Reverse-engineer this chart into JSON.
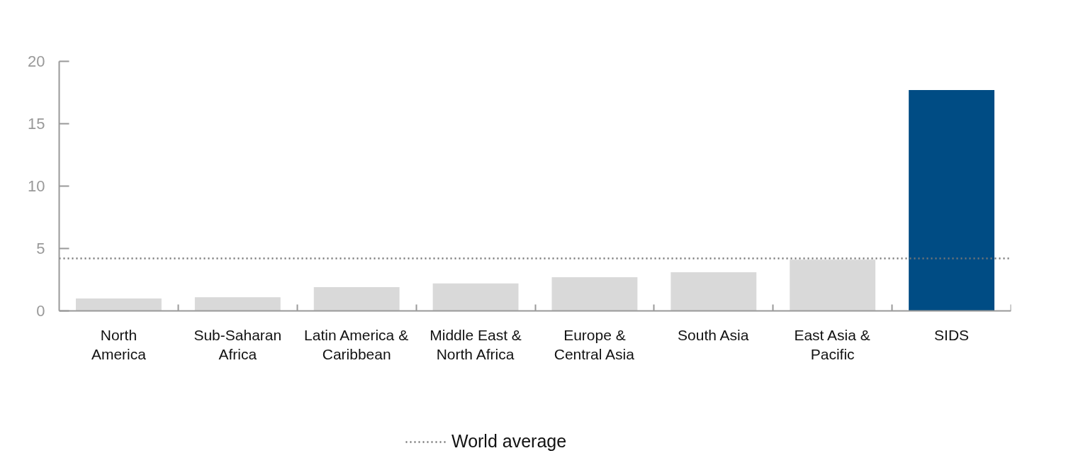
{
  "chart_data": {
    "type": "bar",
    "categories": [
      "North America",
      "Sub-Saharan Africa",
      "Latin America & Caribbean",
      "Middle East & North Africa",
      "Europe & Central Asia",
      "South Asia",
      "East Asia & Pacific",
      "SIDS"
    ],
    "values": [
      1.0,
      1.1,
      1.9,
      2.2,
      2.7,
      3.1,
      4.1,
      17.7
    ],
    "colors": [
      "#d9d9d9",
      "#d9d9d9",
      "#d9d9d9",
      "#d9d9d9",
      "#d9d9d9",
      "#d9d9d9",
      "#d9d9d9",
      "#004c84"
    ],
    "ylim": [
      0,
      20
    ],
    "yticks": [
      0,
      5,
      10,
      15,
      20
    ],
    "grid": false,
    "legend": "bottom",
    "ref_lines": [
      {
        "axis": "y",
        "value": 4.2,
        "label": "World average",
        "color": "#777777",
        "line_style": "dotted"
      }
    ]
  }
}
